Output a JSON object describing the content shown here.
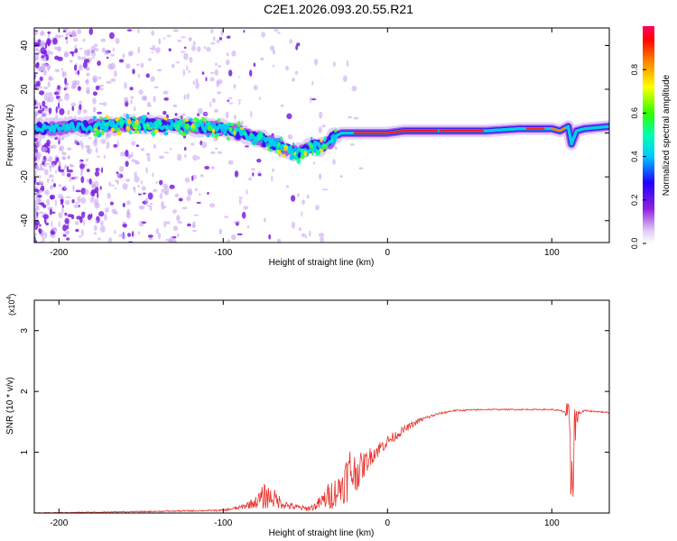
{
  "title": "C2E1.2026.093.20.55.R21",
  "chart_data": [
    {
      "type": "heatmap",
      "name": "spectrogram",
      "xlabel": "Height of straight line (km)",
      "ylabel": "Frequency (Hz)",
      "xlim": [
        -215,
        135
      ],
      "ylim": [
        -50,
        48
      ],
      "xticks": [
        -200,
        -100,
        0,
        100
      ],
      "yticks": [
        -40,
        -20,
        0,
        20,
        40
      ],
      "colorbar": {
        "label": "Normalized spectral amplitude",
        "range": [
          0,
          1
        ],
        "ticks": [
          0.0,
          0.2,
          0.4,
          0.6,
          0.8
        ]
      },
      "ridge": {
        "x": [
          -215,
          -180,
          -150,
          -120,
          -100,
          -80,
          -65,
          -55,
          -45,
          -38,
          -33,
          -28,
          -20,
          -10,
          0,
          10,
          20,
          40,
          60,
          80,
          100,
          105,
          110,
          112,
          115,
          120,
          135
        ],
        "y": [
          2,
          3,
          4,
          3,
          2,
          -2,
          -6,
          -9,
          -6,
          -6,
          -2,
          0,
          0,
          0,
          0,
          1,
          1,
          1,
          1,
          2,
          2,
          1,
          3,
          -5,
          1,
          2,
          3
        ]
      }
    },
    {
      "type": "line",
      "name": "snr",
      "xlabel": "Height of straight line (km)",
      "ylabel": "SNR (10 * v/v)",
      "yscale_label": "(x10",
      "yscale_exp": "4",
      "yscale_close": ")",
      "xlim": [
        -215,
        135
      ],
      "ylim": [
        0,
        3.5
      ],
      "xticks": [
        -200,
        -100,
        0,
        100
      ],
      "yticks": [
        1,
        2,
        3
      ],
      "color": "#e8302a",
      "envelope": {
        "x": [
          -215,
          -150,
          -100,
          -90,
          -80,
          -75,
          -72,
          -68,
          -65,
          -60,
          -55,
          -50,
          -45,
          -40,
          -35,
          -30,
          -25,
          -22,
          -20,
          -15,
          -10,
          0,
          10,
          20,
          30,
          40,
          60,
          80,
          100,
          108,
          110,
          111,
          112,
          113,
          114,
          116,
          120,
          135
        ],
        "base": [
          0.0,
          0.02,
          0.04,
          0.08,
          0.15,
          0.2,
          0.22,
          0.18,
          0.14,
          0.1,
          0.08,
          0.06,
          0.08,
          0.15,
          0.22,
          0.3,
          0.45,
          0.55,
          0.55,
          0.7,
          0.9,
          1.15,
          1.35,
          1.52,
          1.62,
          1.68,
          1.7,
          1.7,
          1.7,
          1.66,
          1.4,
          0.6,
          0.4,
          0.8,
          1.2,
          1.62,
          1.68,
          1.65
        ],
        "noise": [
          0.01,
          0.02,
          0.03,
          0.06,
          0.2,
          0.45,
          0.35,
          0.3,
          0.2,
          0.12,
          0.1,
          0.08,
          0.12,
          0.25,
          0.5,
          0.5,
          0.8,
          1.0,
          0.7,
          0.45,
          0.3,
          0.2,
          0.12,
          0.08,
          0.04,
          0.03,
          0.02,
          0.02,
          0.02,
          0.05,
          0.8,
          1.5,
          1.5,
          1.7,
          1.2,
          0.08,
          0.03,
          0.02
        ]
      }
    }
  ]
}
